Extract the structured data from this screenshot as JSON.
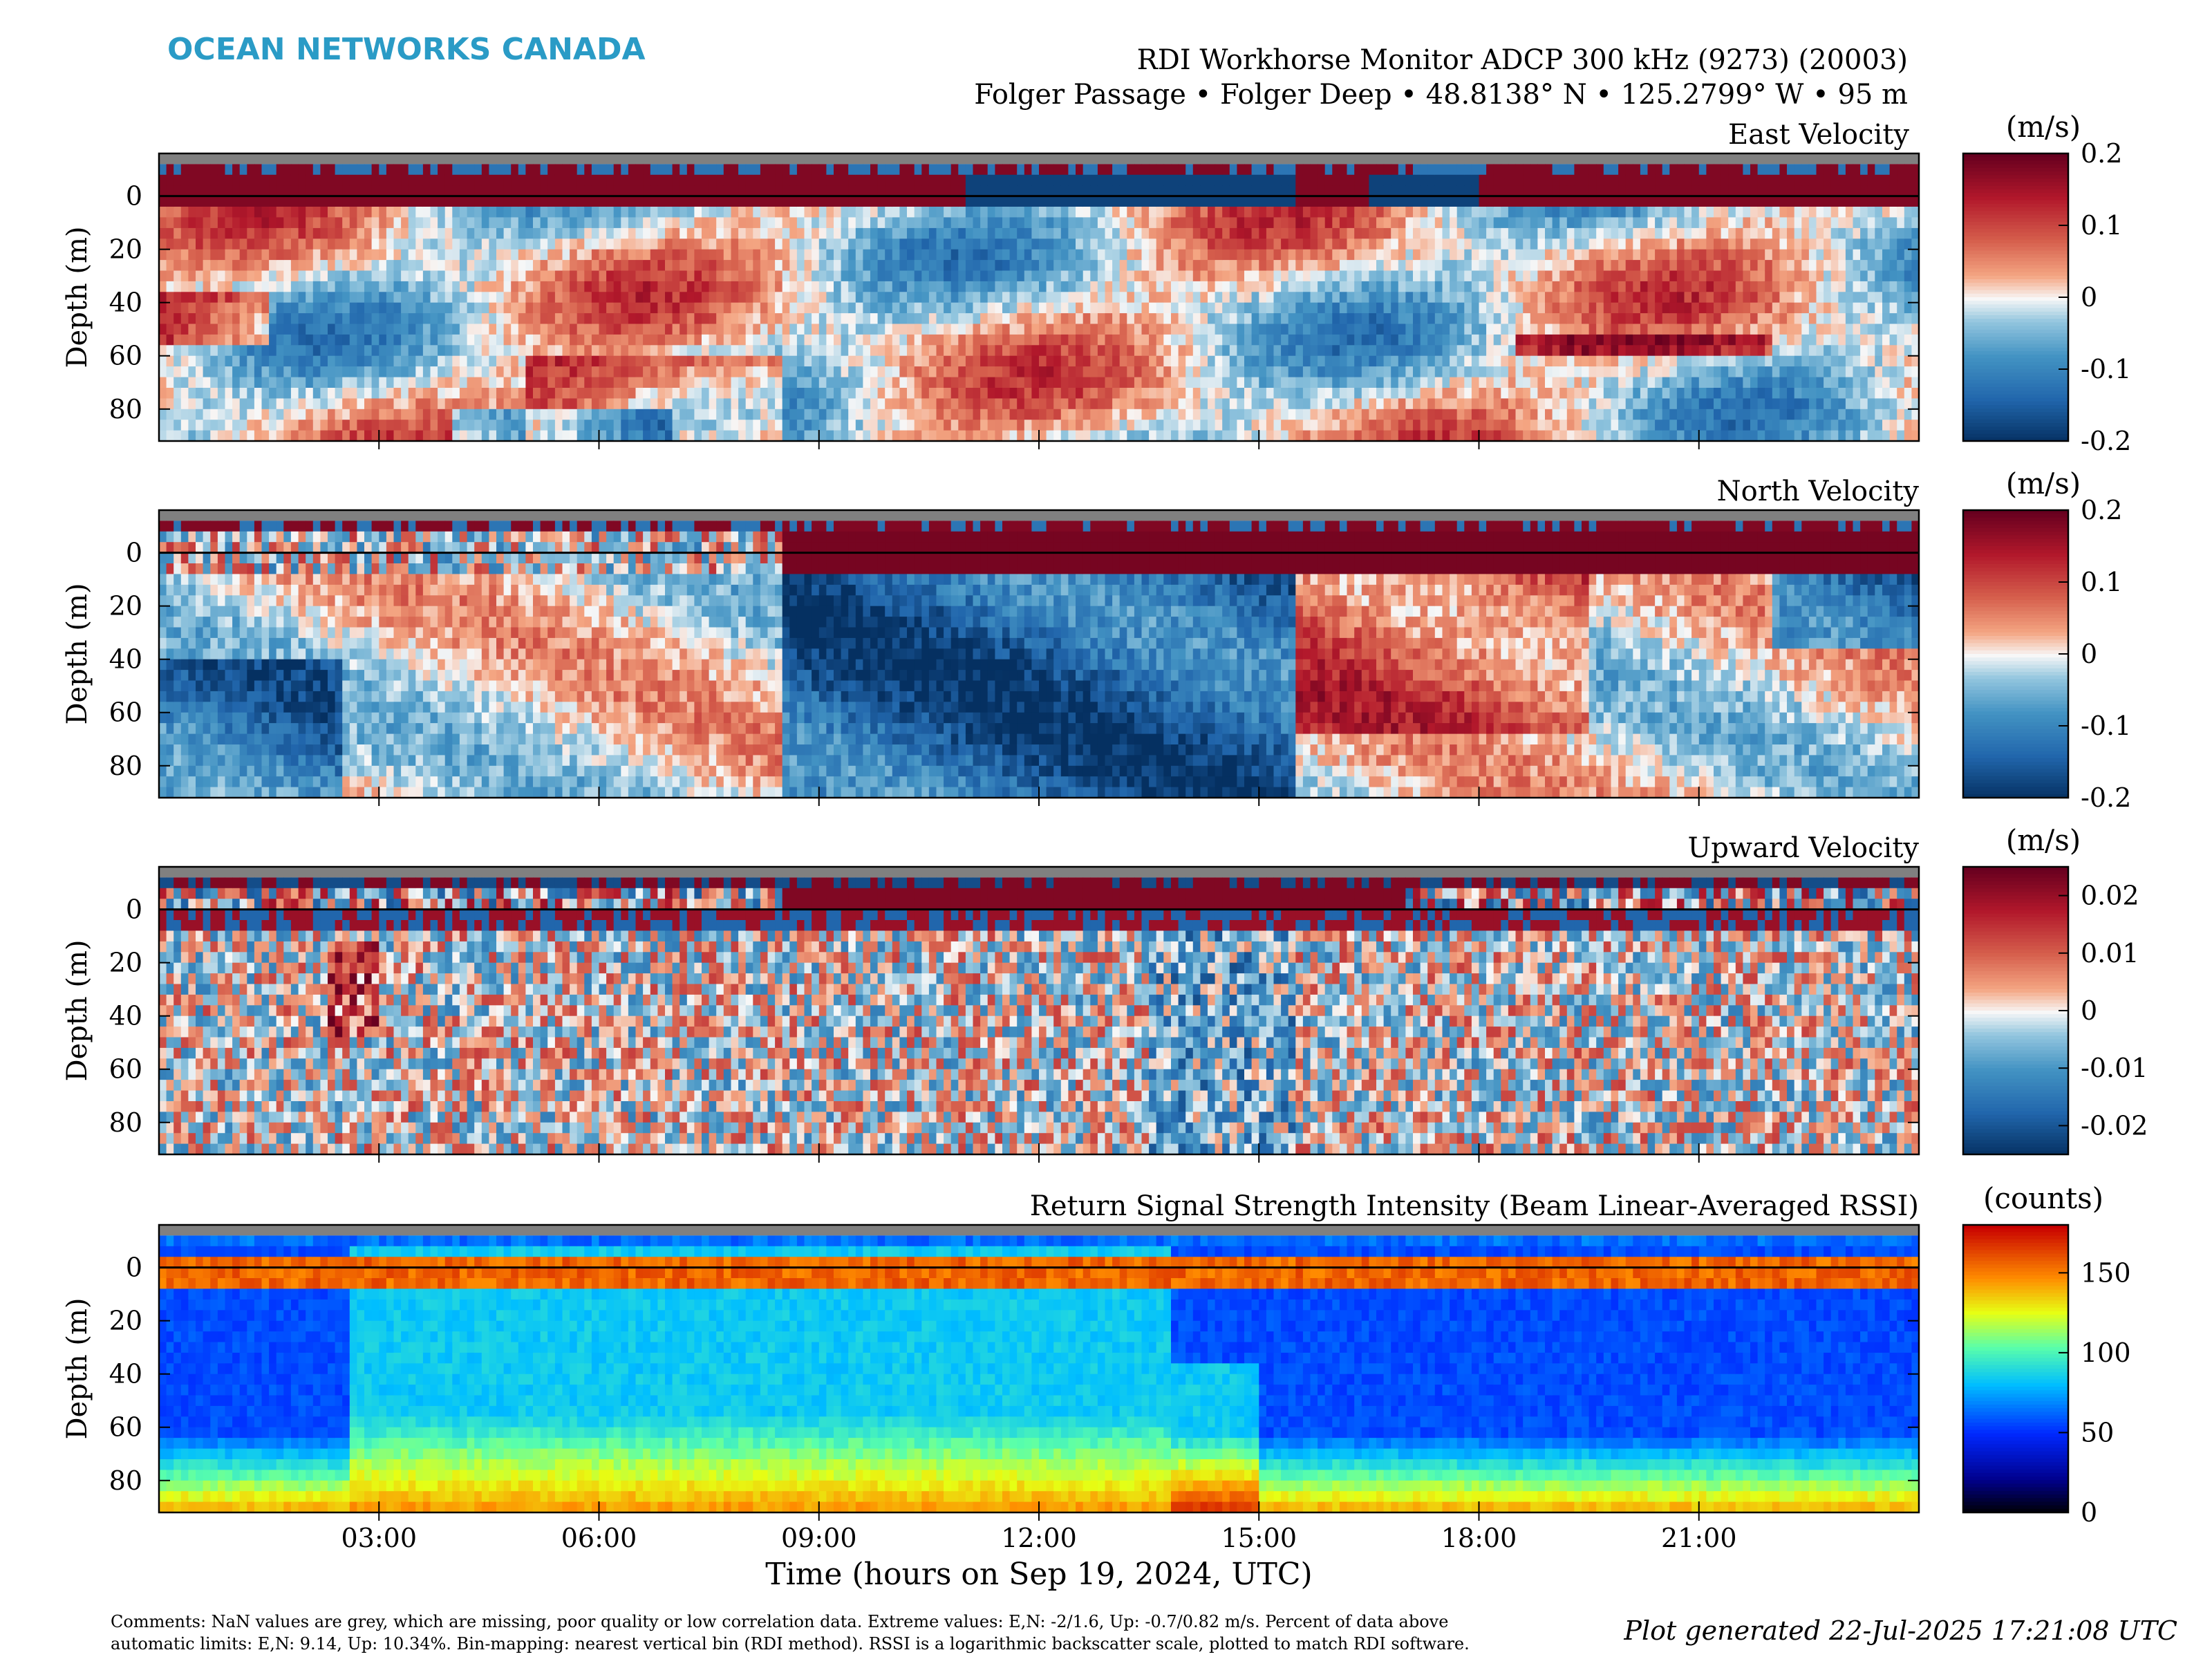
{
  "brand": "OCEAN NETWORKS CANADA",
  "header": {
    "line1": "RDI Workhorse Monitor ADCP 300 kHz (9273) (20003)",
    "line2": "Folger Passage • Folger Deep • 48.8138° N • 125.2799° W • 95 m"
  },
  "colors": {
    "brand": "#2a9bc6",
    "nan": "#808080"
  },
  "chart_data": [
    {
      "type": "heatmap",
      "title": "East Velocity",
      "ylabel": "Depth (m)",
      "ylim": [
        92,
        -16
      ],
      "y_ticks": [
        0,
        20,
        40,
        60,
        80
      ],
      "xlim_hours": [
        0,
        24
      ],
      "x_ticks_hours": [
        3,
        6,
        9,
        12,
        15,
        18,
        21
      ],
      "colorbar": {
        "label": "(m/s)",
        "colormap": "RdBu_r",
        "range": [
          -0.2,
          0.2
        ],
        "ticks": [
          0.2,
          0.1,
          0,
          -0.1,
          -0.2
        ],
        "tick_labels": [
          "0.2",
          "0.1",
          "0",
          "-0.1",
          "-0.2"
        ]
      }
    },
    {
      "type": "heatmap",
      "title": "North Velocity",
      "ylabel": "Depth (m)",
      "ylim": [
        92,
        -16
      ],
      "y_ticks": [
        0,
        20,
        40,
        60,
        80
      ],
      "xlim_hours": [
        0,
        24
      ],
      "x_ticks_hours": [
        3,
        6,
        9,
        12,
        15,
        18,
        21
      ],
      "colorbar": {
        "label": "(m/s)",
        "colormap": "RdBu_r",
        "range": [
          -0.2,
          0.2
        ],
        "ticks": [
          0.2,
          0.1,
          0,
          -0.1,
          -0.2
        ],
        "tick_labels": [
          "0.2",
          "0.1",
          "0",
          "-0.1",
          "-0.2"
        ]
      }
    },
    {
      "type": "heatmap",
      "title": "Upward Velocity",
      "ylabel": "Depth (m)",
      "ylim": [
        92,
        -16
      ],
      "y_ticks": [
        0,
        20,
        40,
        60,
        80
      ],
      "xlim_hours": [
        0,
        24
      ],
      "x_ticks_hours": [
        3,
        6,
        9,
        12,
        15,
        18,
        21
      ],
      "colorbar": {
        "label": "(m/s)",
        "colormap": "RdBu_r",
        "range": [
          -0.025,
          0.025
        ],
        "ticks": [
          0.02,
          0.01,
          0,
          -0.01,
          -0.02
        ],
        "tick_labels": [
          "0.02",
          "0.01",
          "0",
          "-0.01",
          "-0.02"
        ]
      }
    },
    {
      "type": "heatmap",
      "title": "Return Signal Strength Intensity (Beam Linear-Averaged RSSI)",
      "ylabel": "Depth (m)",
      "xlabel": "Time (hours on Sep 19, 2024, UTC)",
      "ylim": [
        92,
        -16
      ],
      "y_ticks": [
        0,
        20,
        40,
        60,
        80
      ],
      "xlim_hours": [
        0,
        24
      ],
      "x_ticks_hours": [
        3,
        6,
        9,
        12,
        15,
        18,
        21
      ],
      "x_tick_labels": [
        "03:00",
        "06:00",
        "09:00",
        "12:00",
        "15:00",
        "18:00",
        "21:00"
      ],
      "colorbar": {
        "label": "(counts)",
        "colormap": "jet",
        "range": [
          0,
          180
        ],
        "ticks": [
          150,
          100,
          50,
          0
        ],
        "tick_labels": [
          "150",
          "100",
          "50",
          "0"
        ]
      }
    }
  ],
  "footer": {
    "comments_line1": "Comments: NaN values are grey, which are missing, poor quality or low correlation data. Extreme values: E,N: -2/1.6, Up: -0.7/0.82 m/s. Percent of data above",
    "comments_line2": "automatic limits: E,N: 9.14, Up: 10.34%. Bin-mapping: nearest vertical bin (RDI method). RSSI is a logarithmic backscatter scale, plotted to match RDI software.",
    "generated": "Plot generated 22-Jul-2025 17:21:08 UTC"
  }
}
